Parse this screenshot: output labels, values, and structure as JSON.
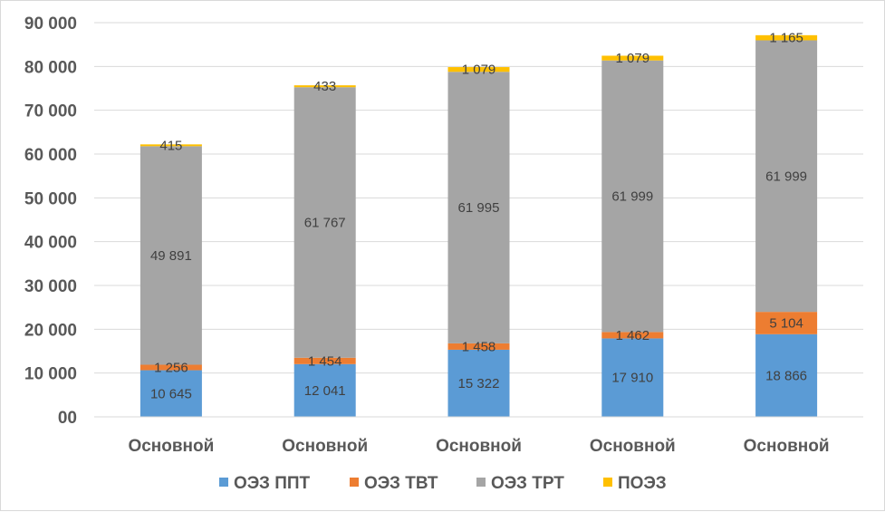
{
  "chart_data": {
    "type": "bar",
    "stacked": true,
    "title": "",
    "xlabel": "",
    "ylabel": "",
    "categories": [
      "Основной",
      "Основной",
      "Основной",
      "Основной",
      "Основной"
    ],
    "ylim": [
      0,
      90000
    ],
    "ytick_values": [
      0,
      10000,
      20000,
      30000,
      40000,
      50000,
      60000,
      70000,
      80000,
      90000
    ],
    "ytick_labels": [
      "00",
      "10 000",
      "20 000",
      "30 000",
      "40 000",
      "50 000",
      "60 000",
      "70 000",
      "80 000",
      "90 000"
    ],
    "grid": true,
    "legend_position": "bottom",
    "series": [
      {
        "name": "ОЭЗ ППТ",
        "color": "#5b9bd5",
        "values": [
          10645,
          12041,
          15322,
          17910,
          18866
        ],
        "labels": [
          "10 645",
          "12 041",
          "15 322",
          "17 910",
          "18 866"
        ]
      },
      {
        "name": "ОЭЗ ТВТ",
        "color": "#ed7d31",
        "values": [
          1256,
          1454,
          1458,
          1462,
          5104
        ],
        "labels": [
          "1 256",
          "1 454",
          "1 458",
          "1 462",
          "5 104"
        ]
      },
      {
        "name": "ОЭЗ ТРТ",
        "color": "#a5a5a5",
        "values": [
          49891,
          61767,
          61995,
          61999,
          61999
        ],
        "labels": [
          "49 891",
          "61 767",
          "61 995",
          "61 999",
          "61 999"
        ]
      },
      {
        "name": "ПОЭЗ",
        "color": "#ffc000",
        "values": [
          415,
          433,
          1079,
          1079,
          1165
        ],
        "labels": [
          "415",
          "433",
          "1 079",
          "1 079",
          "1 165"
        ]
      }
    ]
  }
}
